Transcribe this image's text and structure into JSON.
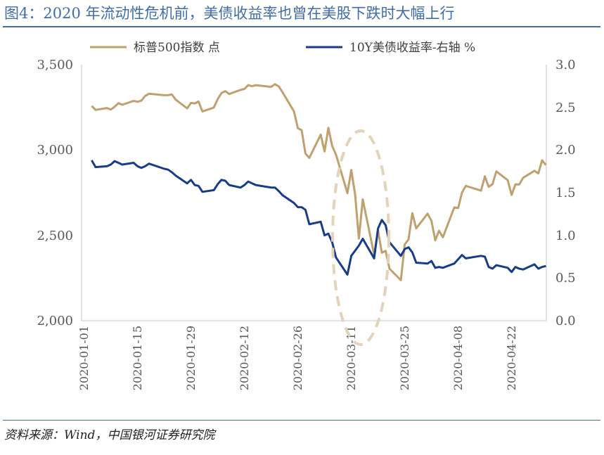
{
  "title": "图4：2020 年流动性危机前，美债收益率也曾在美股下跌时大幅上行",
  "source": "资料来源：Wind，中国银河证券研究院",
  "colors": {
    "spx": "#c0a06e",
    "ust": "#163d8c",
    "title": "#3f6ea8",
    "circle": "#e3d3bb"
  },
  "chart_data": {
    "type": "line",
    "legend": [
      "标普500指数 点",
      "10Y美债收益率-右轴 %"
    ],
    "x_ticks": [
      "2020-01-01",
      "2020-01-15",
      "2020-01-29",
      "2020-02-12",
      "2020-02-26",
      "2020-03-11",
      "2020-03-25",
      "2020-04-08",
      "2020-04-22"
    ],
    "y_left_ticks": [
      "3,500",
      "3,000",
      "2,500",
      "2,000"
    ],
    "y_right_ticks": [
      "3.0",
      "2.5",
      "2.0",
      "1.5",
      "1.0",
      "0.5",
      "0.0"
    ],
    "y_left_range": [
      2000,
      3500
    ],
    "y_right_range": [
      0.0,
      3.0
    ],
    "x": [
      "2020-01-02",
      "2020-01-03",
      "2020-01-06",
      "2020-01-07",
      "2020-01-08",
      "2020-01-09",
      "2020-01-10",
      "2020-01-13",
      "2020-01-14",
      "2020-01-15",
      "2020-01-16",
      "2020-01-17",
      "2020-01-21",
      "2020-01-22",
      "2020-01-23",
      "2020-01-24",
      "2020-01-27",
      "2020-01-28",
      "2020-01-29",
      "2020-01-30",
      "2020-01-31",
      "2020-02-03",
      "2020-02-04",
      "2020-02-05",
      "2020-02-06",
      "2020-02-07",
      "2020-02-10",
      "2020-02-11",
      "2020-02-12",
      "2020-02-13",
      "2020-02-14",
      "2020-02-18",
      "2020-02-19",
      "2020-02-20",
      "2020-02-21",
      "2020-02-24",
      "2020-02-25",
      "2020-02-26",
      "2020-02-27",
      "2020-02-28",
      "2020-03-02",
      "2020-03-03",
      "2020-03-04",
      "2020-03-05",
      "2020-03-06",
      "2020-03-09",
      "2020-03-10",
      "2020-03-11",
      "2020-03-12",
      "2020-03-13",
      "2020-03-16",
      "2020-03-17",
      "2020-03-18",
      "2020-03-19",
      "2020-03-20",
      "2020-03-23",
      "2020-03-24",
      "2020-03-25",
      "2020-03-26",
      "2020-03-27",
      "2020-03-30",
      "2020-03-31",
      "2020-04-01",
      "2020-04-02",
      "2020-04-03",
      "2020-04-06",
      "2020-04-07",
      "2020-04-08",
      "2020-04-09",
      "2020-04-13",
      "2020-04-14",
      "2020-04-15",
      "2020-04-16",
      "2020-04-17",
      "2020-04-20",
      "2020-04-21",
      "2020-04-22",
      "2020-04-23",
      "2020-04-24",
      "2020-04-27",
      "2020-04-28",
      "2020-04-29",
      "2020-04-30"
    ],
    "series": [
      {
        "name": "标普500指数 点",
        "axis": "left",
        "values": [
          3258,
          3235,
          3246,
          3237,
          3253,
          3275,
          3265,
          3288,
          3283,
          3289,
          3317,
          3330,
          3321,
          3321,
          3326,
          3295,
          3244,
          3276,
          3273,
          3284,
          3226,
          3249,
          3298,
          3334,
          3345,
          3328,
          3352,
          3358,
          3380,
          3374,
          3380,
          3370,
          3386,
          3373,
          3338,
          3226,
          3128,
          3116,
          2979,
          2954,
          3090,
          2992,
          3130,
          3024,
          2972,
          2747,
          2883,
          2741,
          2481,
          2711,
          2386,
          2529,
          2398,
          2409,
          2305,
          2237,
          2447,
          2476,
          2630,
          2541,
          2627,
          2585,
          2471,
          2527,
          2489,
          2664,
          2660,
          2750,
          2790,
          2762,
          2846,
          2784,
          2800,
          2875,
          2823,
          2737,
          2799,
          2798,
          2837,
          2878,
          2863,
          2940,
          2912
        ]
      },
      {
        "name": "10Y美债收益率-右轴 %",
        "axis": "right",
        "values": [
          1.88,
          1.8,
          1.81,
          1.83,
          1.87,
          1.85,
          1.83,
          1.85,
          1.81,
          1.79,
          1.81,
          1.84,
          1.78,
          1.77,
          1.74,
          1.7,
          1.61,
          1.65,
          1.59,
          1.58,
          1.51,
          1.53,
          1.6,
          1.65,
          1.64,
          1.59,
          1.56,
          1.59,
          1.63,
          1.61,
          1.59,
          1.56,
          1.56,
          1.52,
          1.47,
          1.38,
          1.33,
          1.33,
          1.3,
          1.13,
          1.16,
          1.0,
          1.02,
          0.92,
          0.74,
          0.54,
          0.76,
          0.82,
          0.88,
          0.96,
          0.73,
          1.08,
          1.18,
          1.12,
          0.92,
          0.76,
          0.84,
          0.86,
          0.8,
          0.68,
          0.67,
          0.7,
          0.62,
          0.63,
          0.62,
          0.67,
          0.72,
          0.77,
          0.73,
          0.76,
          0.75,
          0.63,
          0.61,
          0.65,
          0.62,
          0.57,
          0.63,
          0.61,
          0.6,
          0.66,
          0.61,
          0.63,
          0.64
        ]
      }
    ]
  }
}
